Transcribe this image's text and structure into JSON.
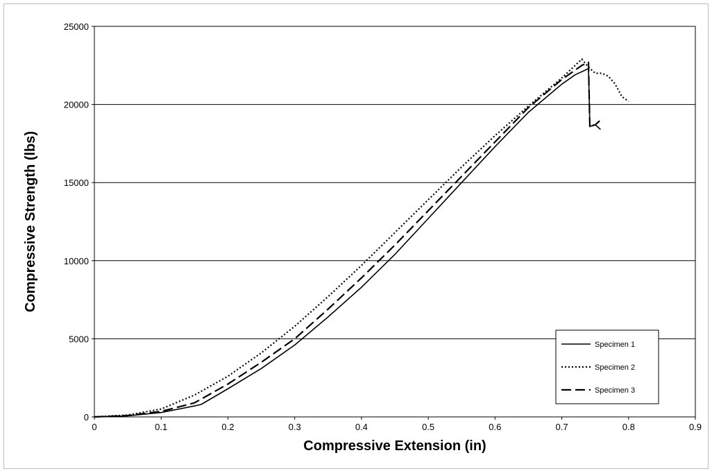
{
  "chart_data": {
    "type": "line",
    "title": "",
    "xlabel": "Compressive Extension (in)",
    "ylabel": "Compressive Strength (lbs)",
    "xlim": [
      0,
      0.9
    ],
    "ylim": [
      0,
      25000
    ],
    "x_ticks": [
      "0",
      "0.1",
      "0.2",
      "0.3",
      "0.4",
      "0.5",
      "0.6",
      "0.7",
      "0.8",
      "0.9"
    ],
    "y_ticks": [
      "0",
      "5000",
      "10000",
      "15000",
      "20000",
      "25000"
    ],
    "grid": "horizontal",
    "legend_position": "bottom-right",
    "series": [
      {
        "name": "Specimen 1",
        "style": "solid",
        "x": [
          0,
          0.05,
          0.1,
          0.15,
          0.16,
          0.2,
          0.25,
          0.3,
          0.35,
          0.4,
          0.45,
          0.5,
          0.55,
          0.6,
          0.65,
          0.7,
          0.72,
          0.735,
          0.74,
          0.742,
          0.742,
          0.75,
          0.758
        ],
        "y": [
          0,
          70,
          280,
          700,
          800,
          1800,
          3100,
          4600,
          6400,
          8300,
          10400,
          12700,
          15000,
          17300,
          19500,
          21300,
          21900,
          22200,
          22300,
          18600,
          18600,
          18700,
          18400
        ]
      },
      {
        "name": "Specimen 2",
        "style": "dotted",
        "x": [
          0,
          0.05,
          0.1,
          0.15,
          0.2,
          0.25,
          0.3,
          0.35,
          0.4,
          0.45,
          0.5,
          0.55,
          0.6,
          0.65,
          0.7,
          0.73,
          0.74,
          0.75,
          0.76,
          0.77,
          0.78,
          0.785,
          0.79,
          0.8
        ],
        "y": [
          0,
          120,
          500,
          1400,
          2600,
          4100,
          5800,
          7700,
          9700,
          11800,
          13900,
          16000,
          18000,
          19900,
          21700,
          22900,
          22400,
          22000,
          22000,
          21800,
          21300,
          20900,
          20500,
          20200
        ]
      },
      {
        "name": "Specimen 3",
        "style": "dashed",
        "x": [
          0,
          0.05,
          0.1,
          0.15,
          0.2,
          0.25,
          0.3,
          0.35,
          0.4,
          0.45,
          0.5,
          0.55,
          0.6,
          0.65,
          0.7,
          0.73,
          0.74,
          0.742,
          0.742,
          0.75,
          0.758
        ],
        "y": [
          0,
          90,
          350,
          900,
          2100,
          3500,
          5000,
          6900,
          8900,
          11000,
          13200,
          15400,
          17600,
          19800,
          21600,
          22500,
          22700,
          18500,
          18600,
          18700,
          19000
        ]
      }
    ]
  }
}
